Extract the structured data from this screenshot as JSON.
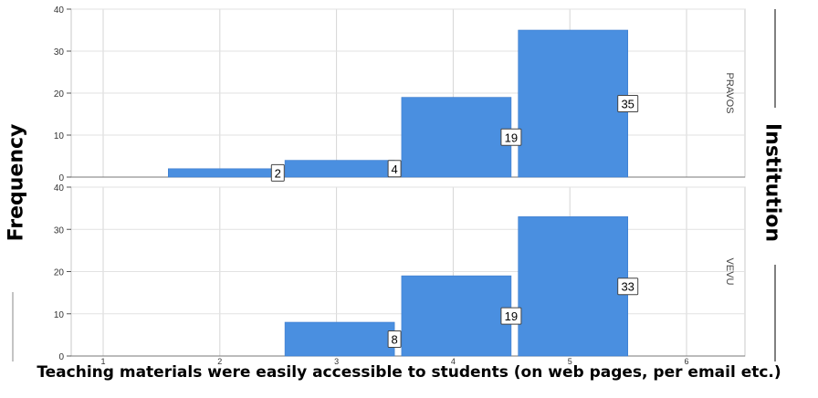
{
  "chart_data": {
    "type": "bar",
    "title": "",
    "xlabel": "Teaching materials were easily accessible to students (on web pages, per email etc.)",
    "ylabel": "Frequency",
    "facet_label": "Institution",
    "categories": [
      "1",
      "2",
      "3",
      "4",
      "5",
      "6"
    ],
    "ylim": [
      0,
      40
    ],
    "yticks": [
      "0",
      "10",
      "20",
      "30",
      "40"
    ],
    "grid": true,
    "bar_color": "#4a8fe0",
    "panels": [
      {
        "name": "PRAVOS",
        "values": [
          0,
          2,
          4,
          19,
          35,
          0
        ],
        "labels": [
          "",
          "2",
          "4",
          "19",
          "35",
          ""
        ]
      },
      {
        "name": "VEVU",
        "values": [
          0,
          0,
          8,
          19,
          33,
          0
        ],
        "labels": [
          "",
          "",
          "8",
          "19",
          "33",
          ""
        ]
      }
    ]
  }
}
